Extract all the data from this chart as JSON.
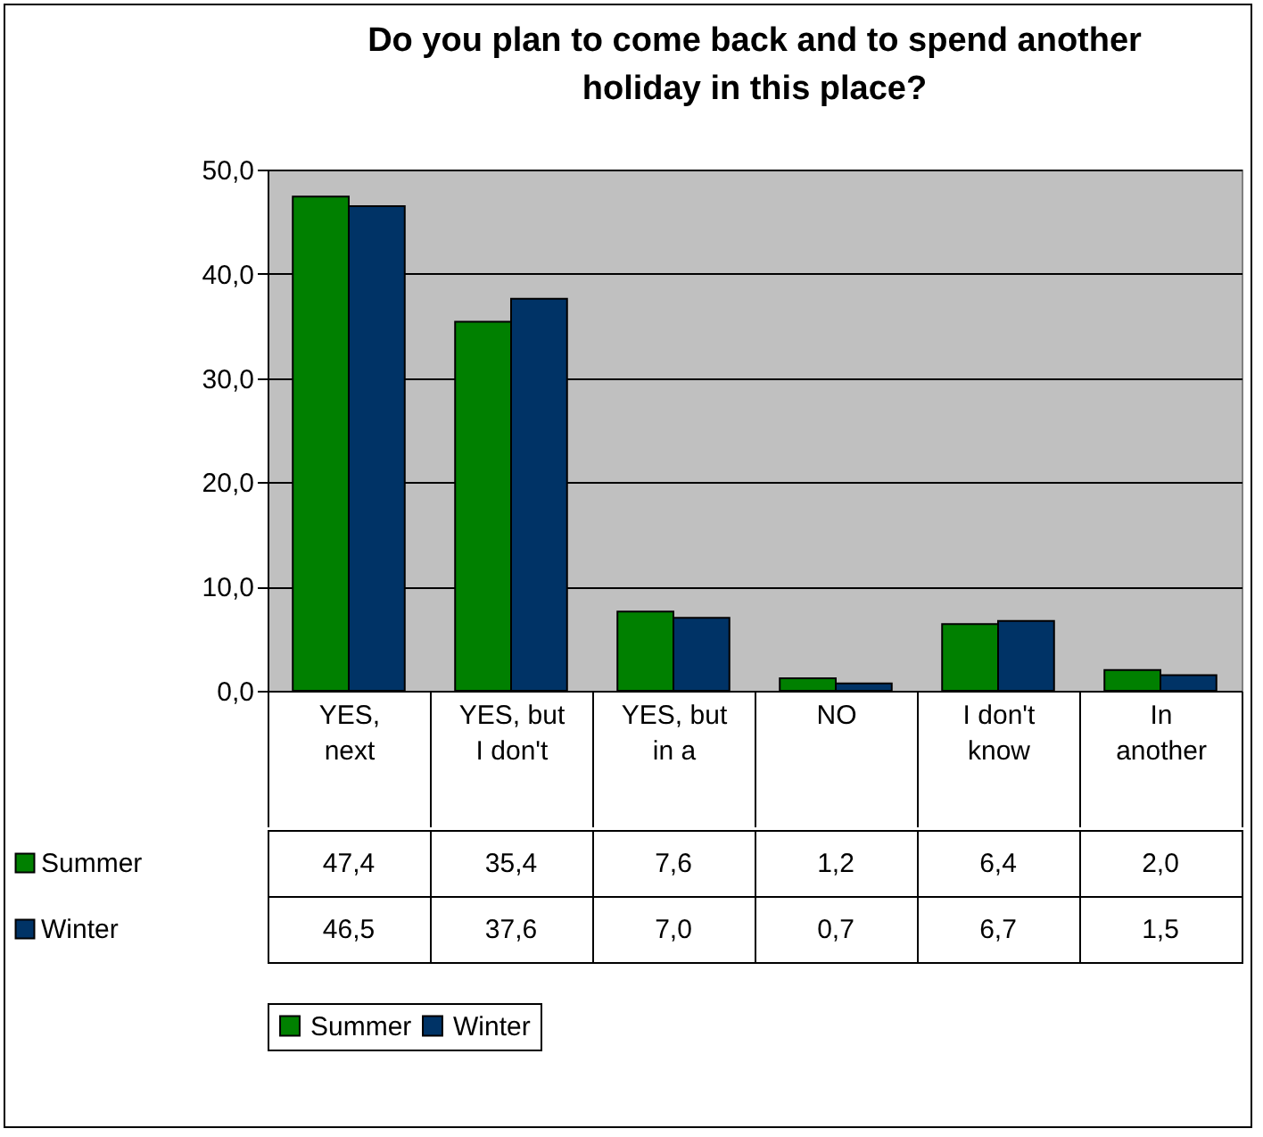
{
  "chart_data": {
    "type": "bar",
    "title": "Do you plan to come back and to spend another\nholiday in this place?",
    "categories": [
      "YES,\nnext",
      "YES, but\nI don't",
      "YES, but\nin a",
      "NO",
      "I don't\nknow",
      "In\nanother"
    ],
    "series": [
      {
        "name": "Summer",
        "color": "#008000",
        "values": [
          47.4,
          35.4,
          7.6,
          1.2,
          6.4,
          2.0
        ],
        "value_labels": [
          "47,4",
          "35,4",
          "7,6",
          "1,2",
          "6,4",
          "2,0"
        ]
      },
      {
        "name": "Winter",
        "color": "#003366",
        "values": [
          46.5,
          37.6,
          7.0,
          0.7,
          6.7,
          1.5
        ],
        "value_labels": [
          "46,5",
          "37,6",
          "7,0",
          "0,7",
          "6,7",
          "1,5"
        ]
      }
    ],
    "ylim": [
      0,
      50
    ],
    "yticks": [
      {
        "value": 0,
        "label": "0,0"
      },
      {
        "value": 10,
        "label": "10,0"
      },
      {
        "value": 20,
        "label": "20,0"
      },
      {
        "value": 30,
        "label": "30,0"
      },
      {
        "value": 40,
        "label": "40,0"
      },
      {
        "value": 50,
        "label": "50,0"
      }
    ],
    "grid": "y",
    "legend": "bottom"
  }
}
